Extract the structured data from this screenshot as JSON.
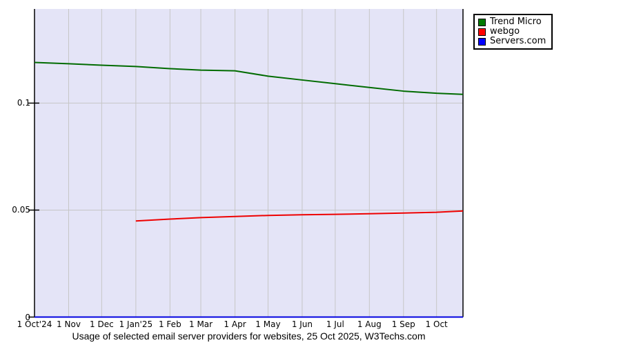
{
  "chart_data": {
    "type": "line",
    "title": "Usage of selected email server providers for websites, 25 Oct 2025, W3Techs.com",
    "x_range": [
      "1 Oct 2024",
      "25 Oct 2025"
    ],
    "total_days": 389,
    "ylim": [
      0,
      0.144
    ],
    "grid": "on",
    "legend_position": "top-right-outside",
    "x_axis": {
      "tick_days": [
        0,
        31,
        61,
        92,
        123,
        151,
        182,
        212,
        243,
        273,
        304,
        335,
        365
      ],
      "tick_labels": [
        "1 Oct'24",
        "1 Nov",
        "1 Dec",
        "1 Jan'25",
        "1 Feb",
        "1 Mar",
        "1 Apr",
        "1 May",
        "1 Jun",
        "1 Jul",
        "1 Aug",
        "1 Sep",
        "1 Oct"
      ]
    },
    "y_axis": {
      "tick_values": [
        0,
        0.05,
        0.1
      ],
      "tick_labels": [
        "0",
        "0.05",
        "0.1"
      ]
    },
    "series": [
      {
        "name": "Trend Micro",
        "color": "#006b00",
        "x_days": [
          0,
          31,
          61,
          92,
          123,
          151,
          182,
          212,
          243,
          273,
          304,
          335,
          365,
          389
        ],
        "values": [
          0.119,
          0.1184,
          0.1177,
          0.1171,
          0.1161,
          0.1154,
          0.1151,
          0.1126,
          0.1108,
          0.1091,
          0.1073,
          0.1056,
          0.1046,
          0.1041
        ]
      },
      {
        "name": "webgo",
        "color": "#ee0000",
        "x_days": [
          92,
          123,
          151,
          182,
          212,
          243,
          273,
          304,
          335,
          365,
          389
        ],
        "values": [
          0.0449,
          0.0458,
          0.0465,
          0.047,
          0.0475,
          0.0478,
          0.048,
          0.0483,
          0.0486,
          0.049,
          0.0496
        ]
      },
      {
        "name": "Servers.com",
        "color": "#0000e0",
        "x_days": [
          0,
          389
        ],
        "values": [
          0,
          0
        ]
      }
    ]
  },
  "legend": {
    "items": [
      {
        "label": "Trend Micro",
        "color": "#007a00"
      },
      {
        "label": "webgo",
        "color": "#ff0000"
      },
      {
        "label": "Servers.com",
        "color": "#0000ff"
      }
    ]
  },
  "colors": {
    "plot_bg": "#e4e4f7",
    "gridline": "#c6c6c6",
    "border": "#000000",
    "tick": "#000000"
  }
}
